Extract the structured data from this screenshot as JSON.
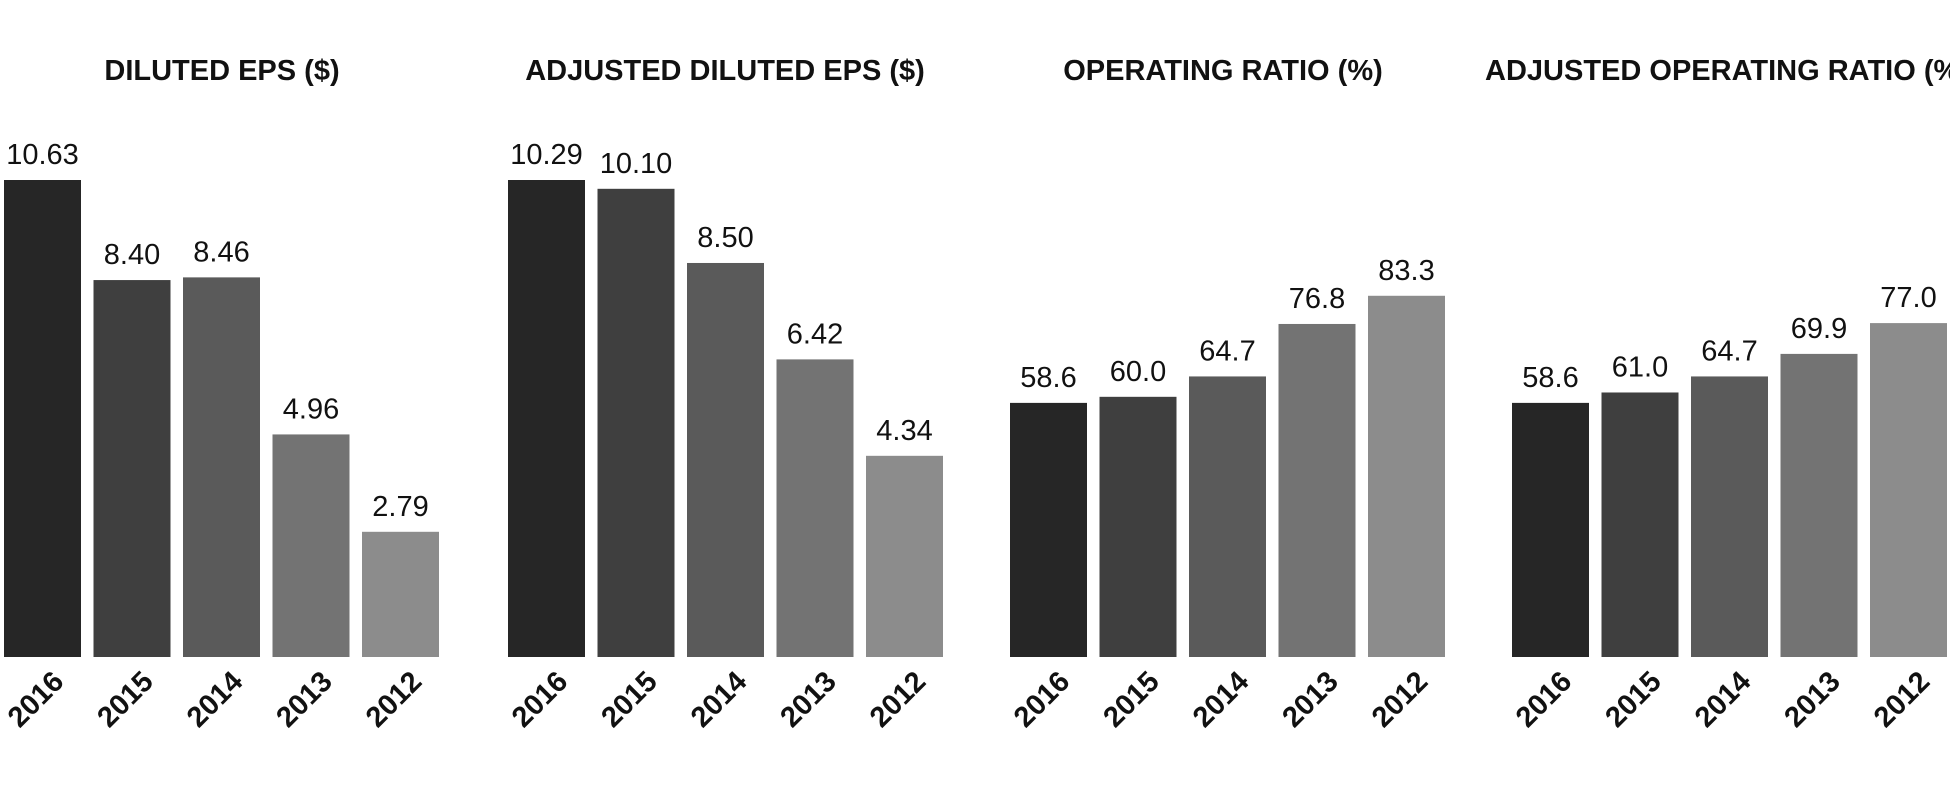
{
  "chart_data": [
    {
      "type": "bar",
      "title": "DILUTED EPS ($)",
      "categories": [
        "2016",
        "2015",
        "2014",
        "2013",
        "2012"
      ],
      "values": [
        10.63,
        8.4,
        8.46,
        4.96,
        2.79
      ],
      "value_labels": [
        "10.63",
        "8.40",
        "8.46",
        "4.96",
        "2.79"
      ],
      "xlabel": "",
      "ylabel": "",
      "ylim": [
        0,
        10.63
      ],
      "grid": false,
      "legend": "none"
    },
    {
      "type": "bar",
      "title": "ADJUSTED DILUTED EPS ($)",
      "categories": [
        "2016",
        "2015",
        "2014",
        "2013",
        "2012"
      ],
      "values": [
        10.29,
        10.1,
        8.5,
        6.42,
        4.34
      ],
      "value_labels": [
        "10.29",
        "10.10",
        "8.50",
        "6.42",
        "4.34"
      ],
      "xlabel": "",
      "ylabel": "",
      "ylim": [
        0,
        10.29
      ],
      "grid": false,
      "legend": "none"
    },
    {
      "type": "bar",
      "title": "OPERATING RATIO (%)",
      "categories": [
        "2016",
        "2015",
        "2014",
        "2013",
        "2012"
      ],
      "values": [
        58.6,
        60.0,
        64.7,
        76.8,
        83.3
      ],
      "value_labels": [
        "58.6",
        "60.0",
        "64.7",
        "76.8",
        "83.3"
      ],
      "xlabel": "",
      "ylabel": "",
      "ylim": [
        0,
        110
      ],
      "grid": false,
      "legend": "none"
    },
    {
      "type": "bar",
      "title": "ADJUSTED OPERATING RATIO (%)",
      "categories": [
        "2016",
        "2015",
        "2014",
        "2013",
        "2012"
      ],
      "values": [
        58.6,
        61.0,
        64.7,
        69.9,
        77.0
      ],
      "value_labels": [
        "58.6",
        "61.0",
        "64.7",
        "69.9",
        "77.0"
      ],
      "xlabel": "",
      "ylabel": "",
      "ylim": [
        0,
        110
      ],
      "grid": false,
      "legend": "none"
    }
  ],
  "colors": {
    "bars": [
      "#262626",
      "#3f3f3f",
      "#5a5a5a",
      "#737373",
      "#8c8c8c"
    ],
    "text": "#111111",
    "background": "#ffffff"
  }
}
